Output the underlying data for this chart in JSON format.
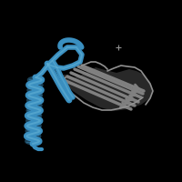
{
  "background_color": "#000000",
  "blue_color": "#3a8fc0",
  "grey_color": "#707070",
  "dark_grey": "#2a2a2a",
  "light_grey": "#909090",
  "figsize": [
    2.0,
    2.0
  ],
  "dpi": 100
}
